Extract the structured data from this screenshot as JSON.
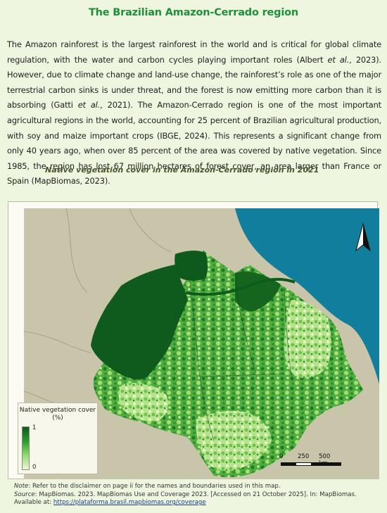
{
  "title": "The Brazilian Amazon-Cerrado region",
  "paragraph": {
    "s1": "The Amazon rainforest is the largest rainforest in the world and is critical for global climate regulation, with the water and carbon cycles playing important roles (Albert ",
    "etal1": "et al.",
    "s2": ", 2023). However, due to climate change and land-use change, the rainforest’s role as one of the major terrestrial carbon sinks is under threat, and the forest is now emitting more carbon than it is absorbing (Gatti ",
    "etal2": "et al.",
    "s3": ", 2021). The Amazon-Cerrado region is one of the most important agricultural regions in the world, accounting for 25 percent of Brazilian agricultural production, with soy and maize important crops (IBGE, 2024). This represents a significant change from only 40 years ago, when over 85 percent of the area was covered by native vegetation. Since 1985, the region has lost 67 million hectares of forest cover, an area larger than France or Spain (MapBiomas, 2023)."
  },
  "map": {
    "caption": "Native vegetation cover in the Amazon-Cerrado region in 2021",
    "legend": {
      "title": "Native vegetation cover (%)",
      "max_label": "1",
      "min_label": "0"
    },
    "scale": {
      "labels": [
        "0",
        "250",
        "500 km"
      ]
    },
    "north_arrow": "north-arrow-icon",
    "colors": {
      "ocean": "#127e9d",
      "land": "#c8c4aa",
      "dense_forest": "#0f5a1d",
      "cleared": "#eef8cf"
    }
  },
  "notes": {
    "note_label": "Note",
    "note_text": ": Refer to the disclaimer on page ii for the names and boundaries used in this map.",
    "source_label": "Source",
    "source_text": ": MapBiomas. 2023. MapBiomas Use and Coverage 2023. [Accessed on 21 October 2025]. In: MapBiomas. Available at: ",
    "source_link": "https://plataforma.brasil.mapbiomas.org/coverage"
  }
}
